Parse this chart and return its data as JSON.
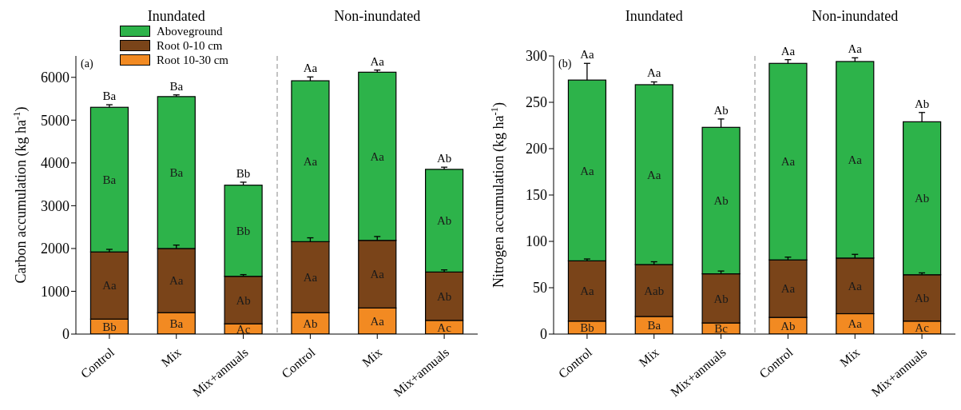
{
  "chart_data": [
    {
      "type": "bar",
      "stacked": true,
      "ylabel": "Carbon accumulation (kg ha$^{-1}$)",
      "categories": [
        "Control",
        "Mix",
        "Mix+annuals",
        "Control",
        "Mix",
        "Mix+annuals"
      ],
      "ylim": [
        0,
        6500
      ],
      "yticks": [
        0,
        1000,
        2000,
        3000,
        4000,
        5000,
        6000
      ],
      "legend": "top left",
      "annotations": [
        "Inundated",
        "Non-inundated",
        "(a)"
      ],
      "totals": [
        "Ba",
        "Ba",
        "Bb",
        "Aa",
        "Aa",
        "Ab"
      ],
      "series": [
        {
          "name": "Root 10-30 cm",
          "color": "#f28a22",
          "values": [
            350,
            500,
            240,
            500,
            610,
            320
          ],
          "value_labels": [
            "Bb",
            "Ba",
            "Ac",
            "Ab",
            "Aa",
            "Ac"
          ]
        },
        {
          "name": "Root 0-10 cm",
          "color": "#7a4419",
          "values": [
            1570,
            1500,
            1110,
            1660,
            1580,
            1130
          ],
          "errors": [
            60,
            80,
            40,
            90,
            90,
            50
          ],
          "value_labels": [
            "Aa",
            "Aa",
            "Ab",
            "Aa",
            "Aa",
            "Ab"
          ]
        },
        {
          "name": "Aboveground",
          "color": "#2db34a",
          "values": [
            3380,
            3550,
            2130,
            3760,
            3930,
            2400
          ],
          "errors": [
            60,
            40,
            70,
            90,
            50,
            50
          ],
          "value_labels": [
            "Ba",
            "Ba",
            "Bb",
            "Aa",
            "Aa",
            "Ab"
          ]
        }
      ]
    },
    {
      "type": "bar",
      "stacked": true,
      "ylabel": "Nitrogen accumulation (kg ha$^{-1}$)",
      "categories": [
        "Control",
        "Mix",
        "Mix+annuals",
        "Control",
        "Mix",
        "Mix+annuals"
      ],
      "ylim": [
        0,
        300
      ],
      "yticks": [
        0,
        50,
        100,
        150,
        200,
        250,
        300
      ],
      "annotations": [
        "Inundated",
        "Non-inundated",
        "(b)"
      ],
      "totals": [
        "Aa",
        "Aa",
        "Ab",
        "Aa",
        "Aa",
        "Ab"
      ],
      "series": [
        {
          "color": "#f28a22",
          "values": [
            14,
            19,
            12,
            18,
            22,
            14
          ],
          "value_labels": [
            "Bb",
            "Ba",
            "Bc",
            "Ab",
            "Aa",
            "Ac"
          ]
        },
        {
          "color": "#7a4419",
          "values": [
            65,
            56,
            53,
            62,
            60,
            50
          ],
          "errors": [
            2,
            3,
            3,
            3,
            4,
            2
          ],
          "value_labels": [
            "Aa",
            "Aab",
            "Ab",
            "Aa",
            "Aa",
            "Ab"
          ]
        },
        {
          "color": "#2db34a",
          "values": [
            195,
            194,
            158,
            212,
            212,
            165
          ],
          "errors": [
            18,
            3,
            9,
            4,
            4,
            10
          ],
          "value_labels": [
            "Aa",
            "Aa",
            "Ab",
            "Aa",
            "Aa",
            "Ab"
          ]
        }
      ]
    }
  ]
}
